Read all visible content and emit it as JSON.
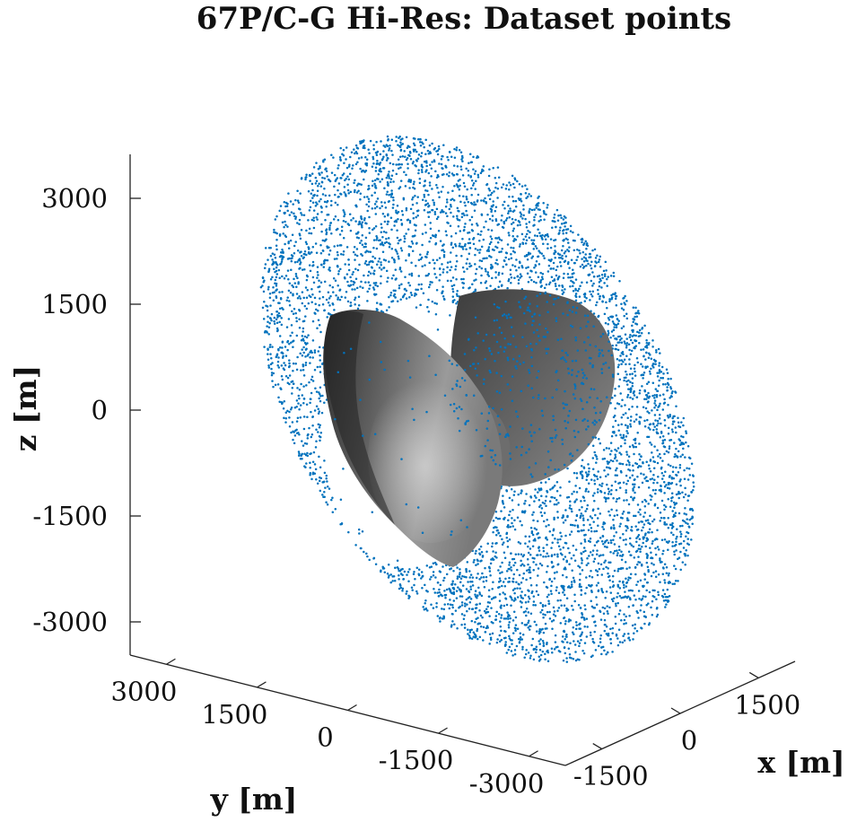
{
  "chart_data": {
    "type": "scatter",
    "subtype": "3d",
    "title": "67P/C-G Hi-Res: Dataset points",
    "xlabel": "x [m]",
    "ylabel": "y [m]",
    "zlabel": "z [m]",
    "xlim": [
      -2200,
      2200
    ],
    "ylim": [
      -3600,
      3600
    ],
    "zlim": [
      -3600,
      3600
    ],
    "z_ticks": [
      3000,
      1500,
      0,
      -1500,
      -3000
    ],
    "z_tick_labels": [
      "3000",
      "1500",
      "0",
      "-1500",
      "-3000"
    ],
    "y_ticks": [
      3000,
      1500,
      0,
      -1500,
      -3000
    ],
    "y_tick_labels": [
      "3000",
      "1500",
      "0",
      "-1500",
      "-3000"
    ],
    "x_ticks": [
      1500,
      0,
      -1500
    ],
    "x_tick_labels": [
      "1500",
      "0",
      "-1500"
    ],
    "grid": false,
    "legend": "none",
    "series": [
      {
        "kind": "scatter-points",
        "color": "#0072BD",
        "distribution": "dense uniform point cloud surrounding the nucleus",
        "approx_count": 7000
      },
      {
        "kind": "surface",
        "color": "#8a8a8a",
        "shape": "bilobed comet nucleus mesh, gray shaded"
      }
    ]
  }
}
